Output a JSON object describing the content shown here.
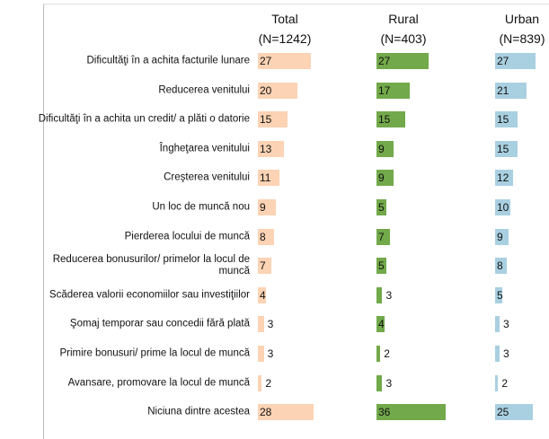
{
  "chart_data": {
    "type": "bar",
    "categories": [
      "Dificultăţi în a achita facturile lunare",
      "Reducerea venitului",
      "Dificultăţi în a achita un credit/ a plăti o datorie",
      "Îngheţarea venitului",
      "Creşterea venitului",
      "Un loc de muncă nou",
      "Pierderea locului de muncă",
      "Reducerea bonusurilor/ primelor la locul de muncă",
      "Scăderea valorii economiilor sau investiţiilor",
      "Şomaj temporar sau concedii fără plată",
      "Primire bonusuri/ prime la locul de muncă",
      "Avansare, promovare la locul de muncă",
      "Niciuna dintre acestea"
    ],
    "series": [
      {
        "name": "Total",
        "n_label": "(N=1242)",
        "color": "#fcd3b4",
        "values": [
          27,
          20,
          15,
          13,
          11,
          9,
          8,
          7,
          4,
          3,
          3,
          2,
          28
        ]
      },
      {
        "name": "Rural",
        "n_label": "(N=403)",
        "color": "#72a94a",
        "values": [
          27,
          17,
          15,
          9,
          9,
          5,
          7,
          5,
          3,
          4,
          2,
          3,
          36
        ]
      },
      {
        "name": "Urban",
        "n_label": "(N=839)",
        "color": "#a9d0e1",
        "values": [
          27,
          21,
          15,
          15,
          12,
          10,
          9,
          8,
          5,
          3,
          3,
          2,
          25
        ]
      }
    ]
  }
}
